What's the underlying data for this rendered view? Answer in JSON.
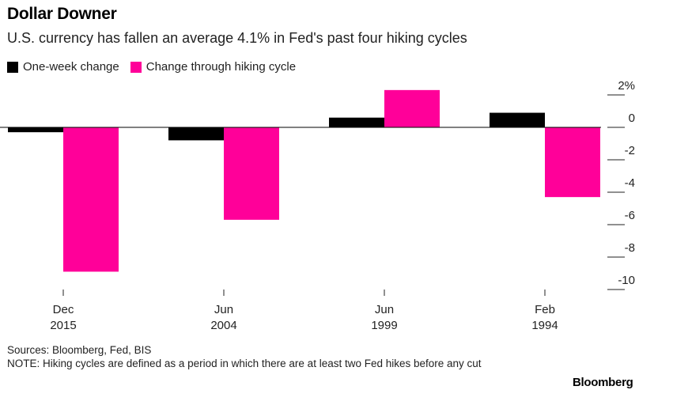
{
  "header": {
    "title": "Dollar Downer",
    "subtitle": "U.S. currency has fallen an average 4.1% in Fed's past four hiking cycles"
  },
  "footer": {
    "sources": "Sources: Bloomberg, Fed, BIS",
    "note": "NOTE: Hiking cycles are defined as a period in which there are at least two Fed hikes before any cut",
    "brand": "Bloomberg"
  },
  "colors": {
    "one_week": "#000000",
    "hiking_cycle": "#ff0099",
    "axis": "#000000",
    "tick": "#222222"
  },
  "chart_data": {
    "type": "bar",
    "categories": [
      [
        "Dec",
        "2015"
      ],
      [
        "Jun",
        "2004"
      ],
      [
        "Jun",
        "1999"
      ],
      [
        "Feb",
        "1994"
      ]
    ],
    "series": [
      {
        "name": "One-week change",
        "color": "#000000",
        "values": [
          -0.3,
          -0.8,
          0.6,
          0.9
        ]
      },
      {
        "name": "Change through hiking cycle",
        "color": "#ff0099",
        "values": [
          -8.9,
          -5.7,
          2.3,
          -4.3
        ]
      }
    ],
    "y_ticks": [
      2,
      0,
      -2,
      -4,
      -6,
      -8,
      -10
    ],
    "y_tick_labels": [
      "2%",
      "0",
      "-2",
      "-4",
      "-6",
      "-8",
      "-10"
    ],
    "ylim": [
      -10,
      2
    ],
    "legend_position": "top-left",
    "y_axis_side": "right",
    "grid": false
  }
}
